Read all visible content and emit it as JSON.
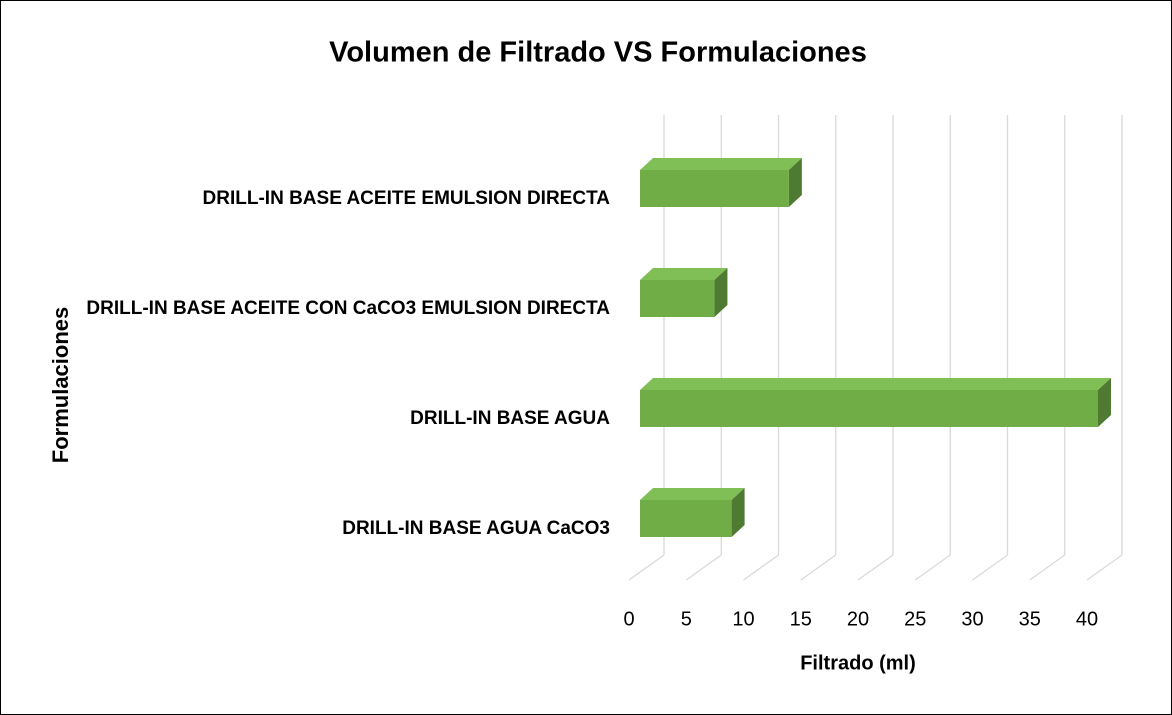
{
  "chart_data": {
    "type": "bar3d_horizontal",
    "title": "Volumen de Filtrado VS Formulaciones",
    "x_label": "Filtrado (ml)",
    "y_label": "Formulaciones",
    "categories": [
      "DRILL-IN BASE ACEITE EMULSION DIRECTA",
      "DRILL-IN BASE ACEITE CON CaCO3 EMULSION DIRECTA",
      "DRILL-IN BASE AGUA ",
      "DRILL-IN BASE AGUA CaCO3"
    ],
    "values": [
      13,
      6.5,
      40,
      8
    ],
    "color": "#70ad47",
    "xlim": [
      0,
      42
    ],
    "xticks": [
      0,
      5,
      10,
      15,
      20,
      25,
      30,
      35,
      40
    ],
    "grid": true
  }
}
